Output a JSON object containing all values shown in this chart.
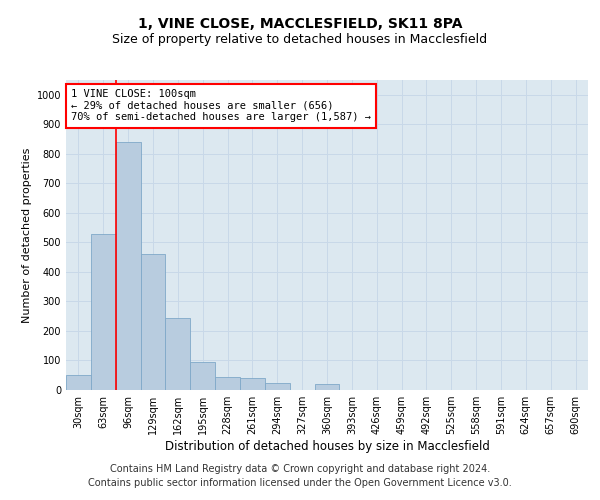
{
  "title": "1, VINE CLOSE, MACCLESFIELD, SK11 8PA",
  "subtitle": "Size of property relative to detached houses in Macclesfield",
  "xlabel": "Distribution of detached houses by size in Macclesfield",
  "ylabel": "Number of detached properties",
  "bin_labels": [
    "30sqm",
    "63sqm",
    "96sqm",
    "129sqm",
    "162sqm",
    "195sqm",
    "228sqm",
    "261sqm",
    "294sqm",
    "327sqm",
    "360sqm",
    "393sqm",
    "426sqm",
    "459sqm",
    "492sqm",
    "525sqm",
    "558sqm",
    "591sqm",
    "624sqm",
    "657sqm",
    "690sqm"
  ],
  "bar_heights": [
    50,
    530,
    840,
    460,
    245,
    95,
    45,
    40,
    25,
    0,
    20,
    0,
    0,
    0,
    0,
    0,
    0,
    0,
    0,
    0,
    0
  ],
  "bar_color": "#b8ccdf",
  "bar_edge_color": "#7fa8c8",
  "property_line_index": 2,
  "property_line_color": "red",
  "annotation_text": "1 VINE CLOSE: 100sqm\n← 29% of detached houses are smaller (656)\n70% of semi-detached houses are larger (1,587) →",
  "annotation_box_color": "white",
  "annotation_box_edge_color": "red",
  "ylim": [
    0,
    1050
  ],
  "yticks": [
    0,
    100,
    200,
    300,
    400,
    500,
    600,
    700,
    800,
    900,
    1000
  ],
  "grid_color": "#c8d8e8",
  "background_color": "#dce8f0",
  "footer_line1": "Contains HM Land Registry data © Crown copyright and database right 2024.",
  "footer_line2": "Contains public sector information licensed under the Open Government Licence v3.0.",
  "title_fontsize": 10,
  "subtitle_fontsize": 9,
  "axis_label_fontsize": 8,
  "tick_fontsize": 7,
  "footer_fontsize": 7,
  "annotation_fontsize": 7.5
}
